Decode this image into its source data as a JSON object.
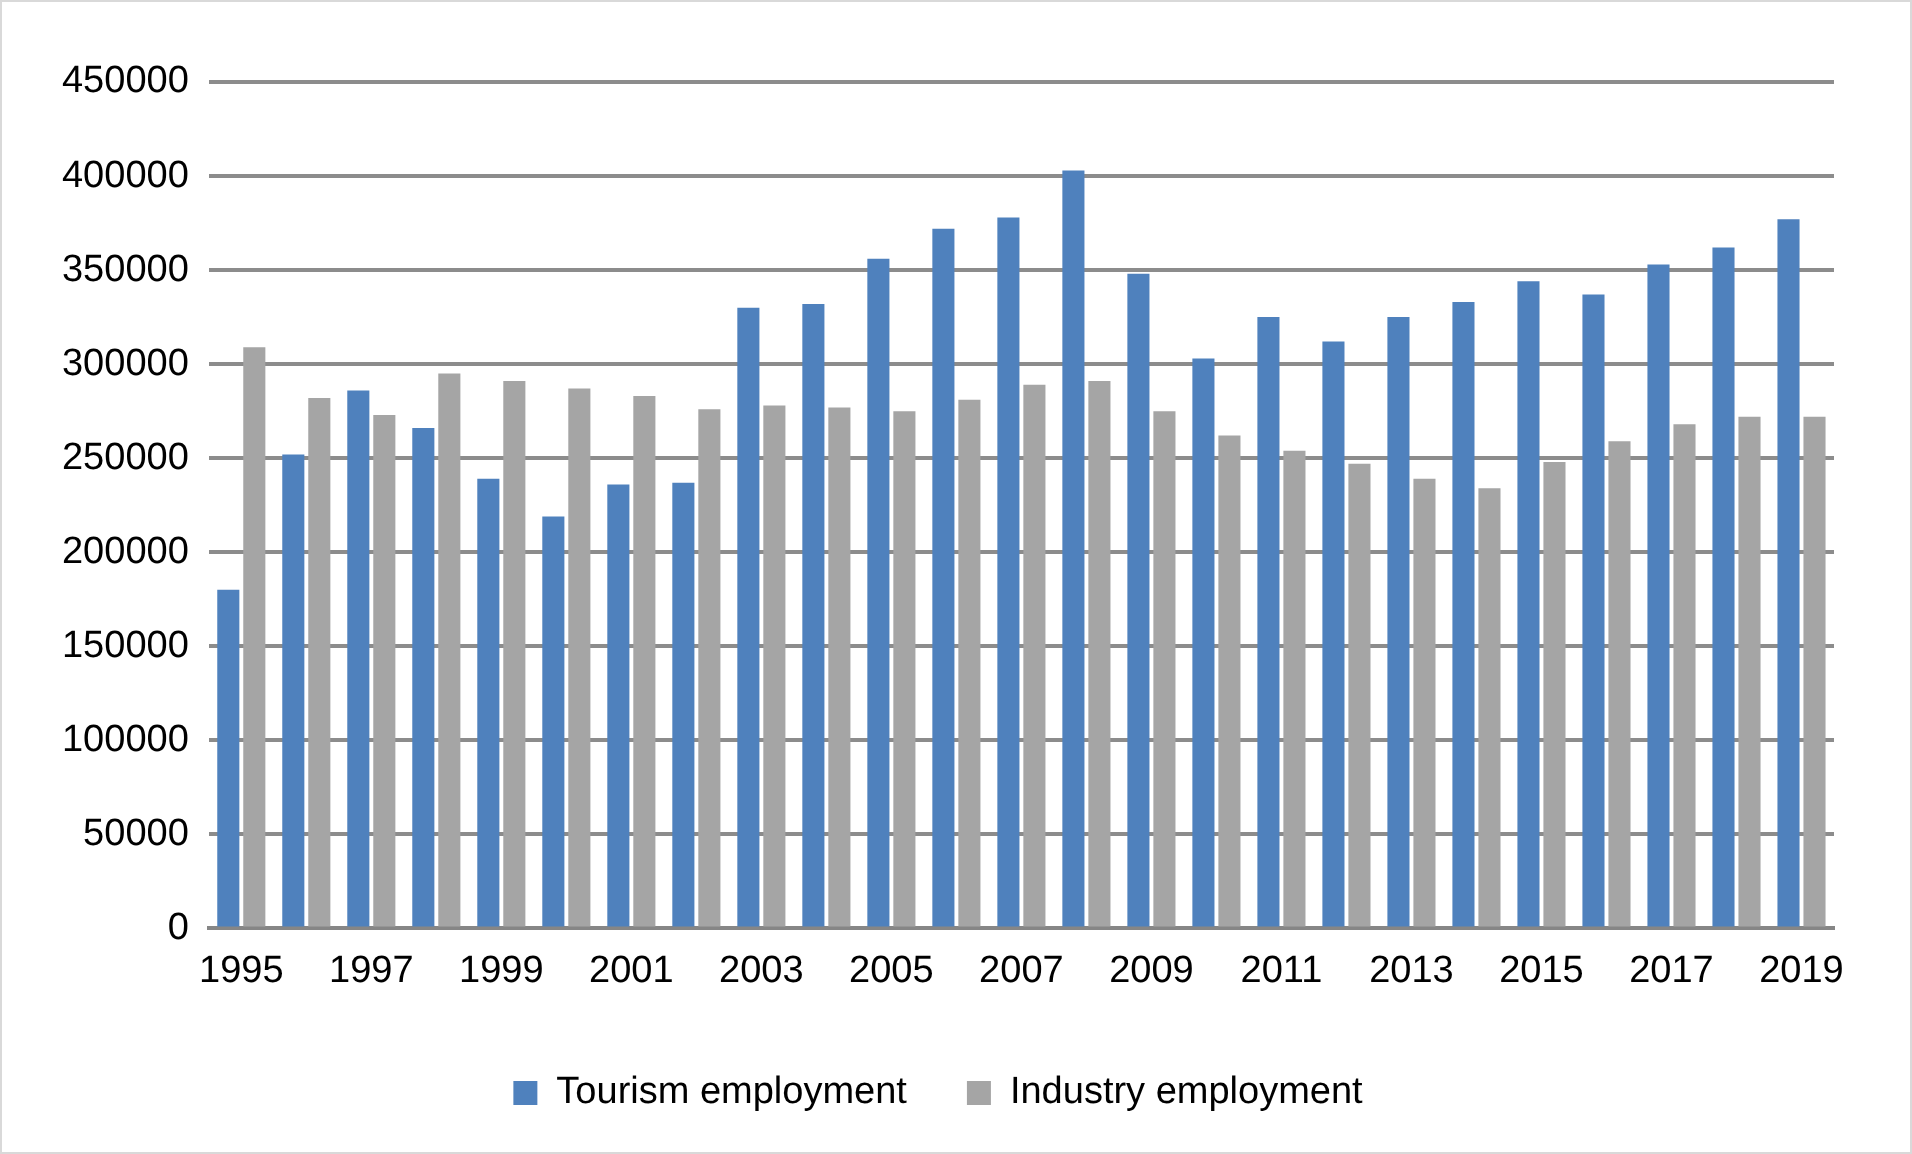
{
  "chart_data": {
    "type": "bar",
    "categories": [
      "1995",
      null,
      "1997",
      null,
      "1999",
      null,
      "2001",
      null,
      "2003",
      null,
      "2005",
      null,
      "2007",
      null,
      "2009",
      null,
      "2011",
      null,
      "2013",
      null,
      "2015",
      null,
      "2017",
      null,
      "2019"
    ],
    "series": [
      {
        "name": "Tourism employment",
        "color": "#4f81bd",
        "values": [
          180000,
          252000,
          286000,
          266000,
          239000,
          219000,
          236000,
          237000,
          330000,
          332000,
          356000,
          372000,
          378000,
          403000,
          348000,
          303000,
          325000,
          312000,
          325000,
          333000,
          344000,
          337000,
          353000,
          362000,
          377000
        ]
      },
      {
        "name": "Industry employment",
        "color": "#a5a5a5",
        "values": [
          309000,
          282000,
          273000,
          295000,
          291000,
          287000,
          283000,
          276000,
          278000,
          277000,
          275000,
          281000,
          289000,
          291000,
          275000,
          262000,
          254000,
          247000,
          239000,
          234000,
          248000,
          259000,
          268000,
          272000,
          272000
        ]
      }
    ],
    "ylim": [
      0,
      450000
    ],
    "yticks": [
      0,
      50000,
      100000,
      150000,
      200000,
      250000,
      300000,
      350000,
      400000,
      450000
    ],
    "grid": "y",
    "legend": "bottom"
  }
}
